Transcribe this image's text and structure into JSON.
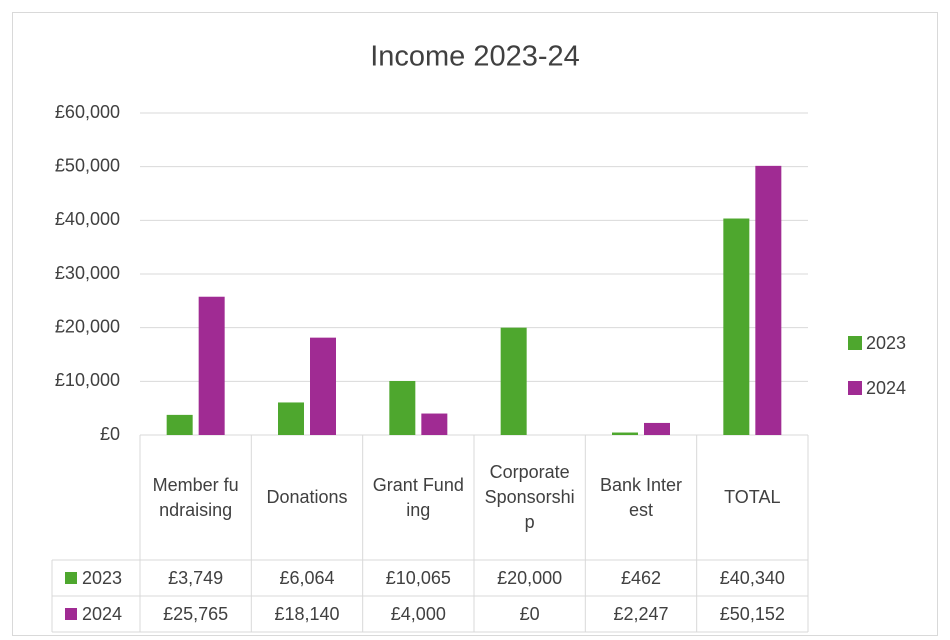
{
  "chart_data": {
    "type": "bar",
    "title": "Income 2023-24",
    "categories": [
      "Member fundraising",
      "Donations",
      "Grant Funding",
      "Corporate Sponsorship",
      "Bank Interest",
      "TOTAL"
    ],
    "series": [
      {
        "name": "2023",
        "color": "#4ea72e",
        "values": [
          3749,
          6064,
          10065,
          20000,
          462,
          40340
        ],
        "value_labels": [
          "£3,749",
          "£6,064",
          "£10,065",
          "£20,000",
          "£462",
          "£40,340"
        ]
      },
      {
        "name": "2024",
        "color": "#a02b93",
        "values": [
          25765,
          18140,
          4000,
          0,
          2247,
          50152
        ],
        "value_labels": [
          "£25,765",
          "£18,140",
          "£4,000",
          "£0",
          "£2,247",
          "£50,152"
        ]
      }
    ],
    "ylim": [
      0,
      60000
    ],
    "yticks": [
      {
        "value": 0,
        "label": "£0"
      },
      {
        "value": 10000,
        "label": "£10,000"
      },
      {
        "value": 20000,
        "label": "£20,000"
      },
      {
        "value": 30000,
        "label": "£30,000"
      },
      {
        "value": 40000,
        "label": "£40,000"
      },
      {
        "value": 50000,
        "label": "£50,000"
      },
      {
        "value": 60000,
        "label": "£60,000"
      }
    ],
    "grid": true,
    "legend": "right",
    "data_table": true
  }
}
